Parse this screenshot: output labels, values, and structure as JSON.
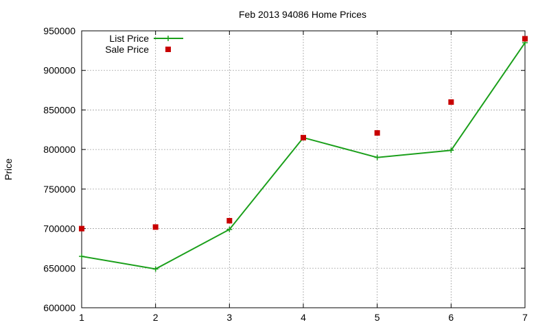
{
  "chart_data": {
    "type": "line",
    "title": "Feb 2013 94086 Home Prices",
    "xlabel": "",
    "ylabel": "Price",
    "x": [
      1,
      2,
      3,
      4,
      5,
      6,
      7
    ],
    "xlim": [
      1,
      7
    ],
    "ylim": [
      600000,
      950000
    ],
    "xticks": [
      "1",
      "2",
      "3",
      "4",
      "5",
      "6",
      "7"
    ],
    "yticks": [
      "600000",
      "650000",
      "700000",
      "750000",
      "800000",
      "850000",
      "900000",
      "950000"
    ],
    "grid": true,
    "legend_position": "top-left",
    "series": [
      {
        "name": "List Price",
        "style": "line-with-plus-markers",
        "color": "#1a9f1a",
        "values": [
          665000,
          649000,
          699000,
          815000,
          790000,
          799000,
          935000
        ]
      },
      {
        "name": "Sale Price",
        "style": "square-markers",
        "color": "#c80000",
        "values": [
          700000,
          702000,
          710000,
          815000,
          821000,
          860000,
          940000
        ]
      }
    ]
  }
}
